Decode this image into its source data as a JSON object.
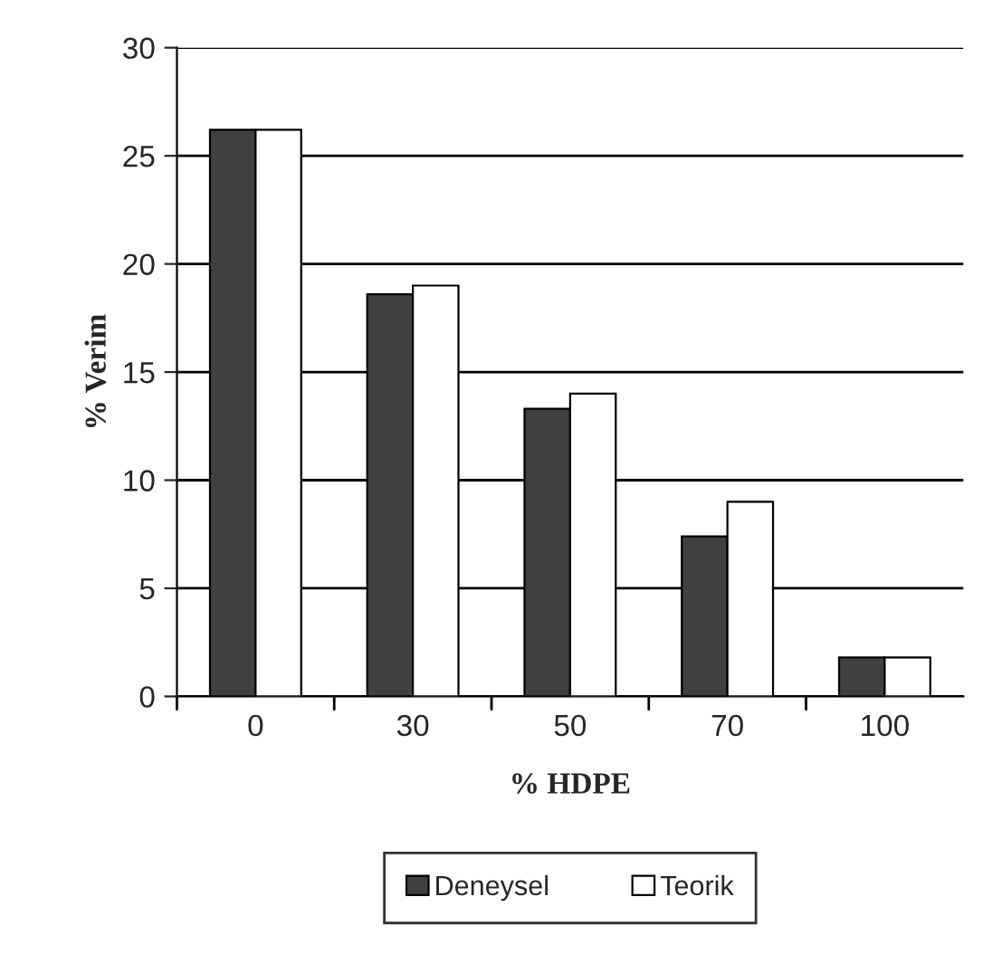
{
  "chart_data": {
    "type": "bar",
    "xlabel": "% HDPE",
    "ylabel": "% Verim",
    "categories": [
      "0",
      "30",
      "50",
      "70",
      "100"
    ],
    "series": [
      {
        "name": "Deneysel",
        "color": "#404040",
        "values": [
          26.2,
          18.6,
          13.3,
          7.4,
          1.8
        ]
      },
      {
        "name": "Teorik",
        "color": "#ffffff",
        "values": [
          26.2,
          19.0,
          14.0,
          9.0,
          1.8
        ]
      }
    ],
    "ylim": [
      0,
      30
    ],
    "yticks": [
      0,
      5,
      10,
      15,
      20,
      25,
      30
    ],
    "grid": "y",
    "legend": "bottom"
  }
}
